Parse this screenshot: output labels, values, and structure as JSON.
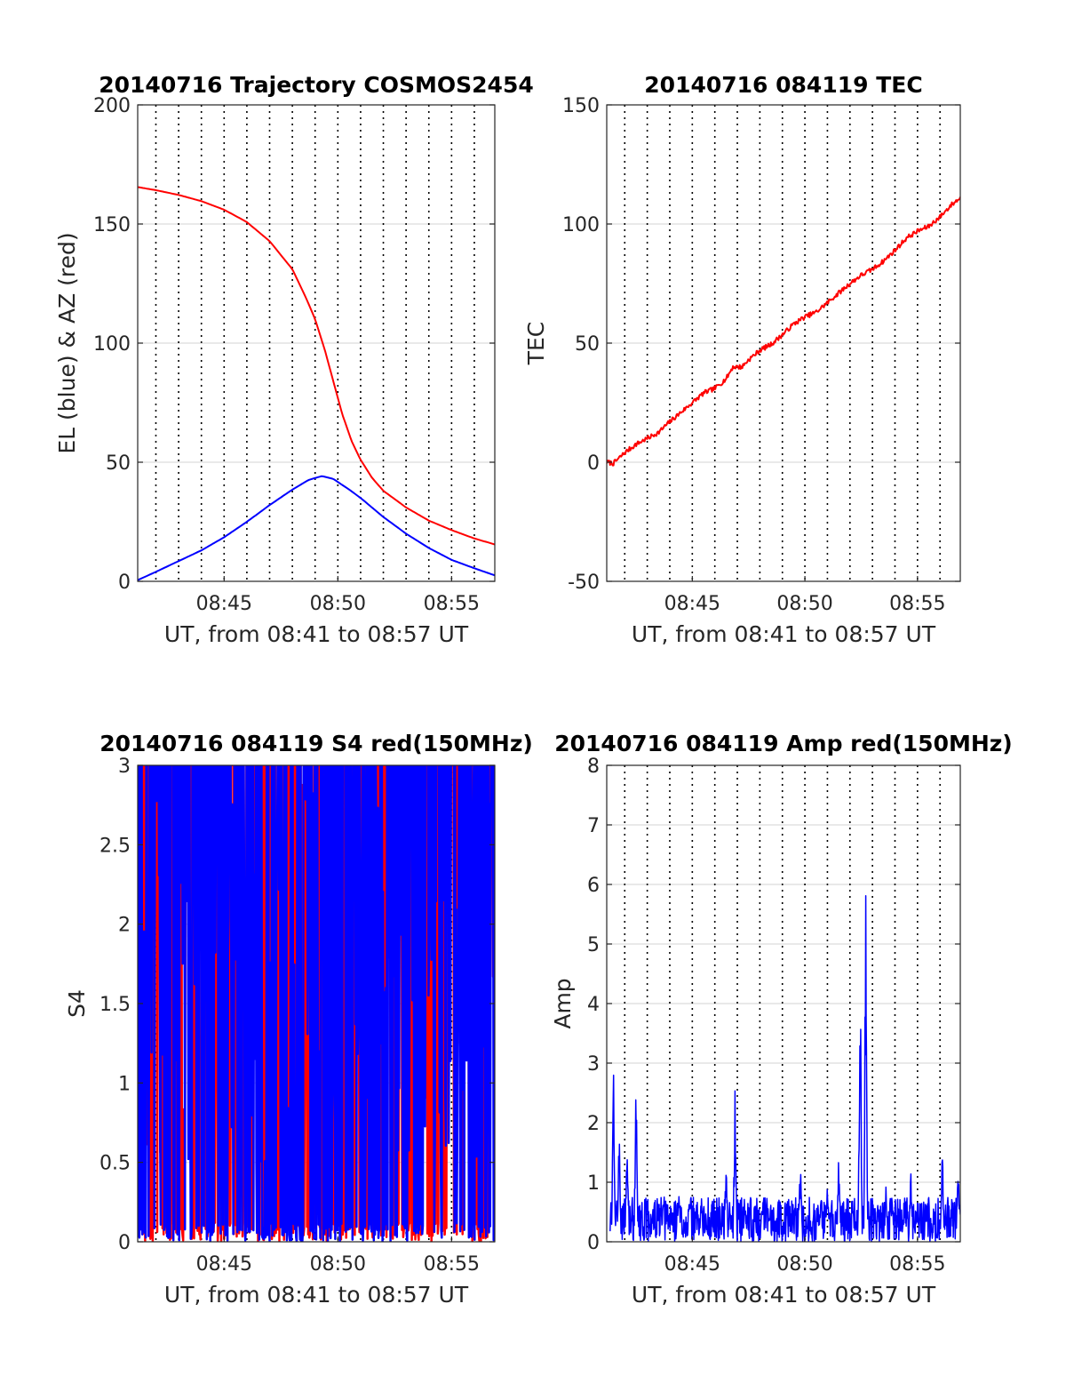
{
  "charts": [
    {
      "id": "trajectory",
      "type": "line",
      "title": "20140716 Trajectory COSMOS2454",
      "xlabel": "UT, from 08:41 to 08:57 UT",
      "ylabel": "EL (blue) & AZ (red)",
      "xlim_min": [
        41.2,
        56.9
      ],
      "ylim": [
        0,
        200
      ],
      "yticks": [
        "0",
        "50",
        "100",
        "150",
        "200"
      ],
      "xticks": [
        {
          "v": 45,
          "label": "08:45"
        },
        {
          "v": 50,
          "label": "08:50"
        },
        {
          "v": 55,
          "label": "08:55"
        }
      ],
      "minute_grid": [
        42,
        43,
        44,
        45,
        46,
        47,
        48,
        49,
        50,
        51,
        52,
        53,
        54,
        55,
        56
      ],
      "series": [
        {
          "color": "#ff0000",
          "width": 2,
          "points": [
            [
              41.2,
              165.5
            ],
            [
              42.0,
              164.2
            ],
            [
              43.0,
              162.2
            ],
            [
              44.0,
              159.6
            ],
            [
              45.0,
              156.0
            ],
            [
              46.0,
              150.8
            ],
            [
              47.0,
              142.8
            ],
            [
              48.0,
              131.0
            ],
            [
              48.6,
              119.0
            ],
            [
              49.0,
              110.0
            ],
            [
              49.4,
              98.0
            ],
            [
              49.8,
              84.0
            ],
            [
              50.2,
              70.0
            ],
            [
              50.6,
              59.0
            ],
            [
              51.0,
              51.0
            ],
            [
              51.5,
              43.5
            ],
            [
              52.0,
              38.0
            ],
            [
              53.0,
              31.0
            ],
            [
              54.0,
              25.5
            ],
            [
              55.0,
              21.5
            ],
            [
              56.0,
              18.0
            ],
            [
              56.9,
              15.5
            ]
          ]
        },
        {
          "color": "#0000ff",
          "width": 2,
          "points": [
            [
              41.2,
              0.5
            ],
            [
              42.0,
              4.0
            ],
            [
              43.0,
              8.5
            ],
            [
              44.0,
              13.0
            ],
            [
              45.0,
              18.5
            ],
            [
              46.0,
              25.0
            ],
            [
              47.0,
              32.0
            ],
            [
              48.0,
              38.5
            ],
            [
              48.7,
              42.5
            ],
            [
              49.3,
              44.2
            ],
            [
              49.8,
              43.0
            ],
            [
              50.5,
              38.5
            ],
            [
              51.0,
              35.0
            ],
            [
              52.0,
              27.0
            ],
            [
              53.0,
              20.0
            ],
            [
              54.0,
              14.0
            ],
            [
              55.0,
              9.0
            ],
            [
              56.0,
              5.5
            ],
            [
              56.9,
              2.5
            ]
          ]
        }
      ]
    },
    {
      "id": "tec",
      "type": "line",
      "title": "20140716 084119 TEC",
      "xlabel": "UT, from 08:41 to 08:57 UT",
      "ylabel": "TEC",
      "xlim_min": [
        41.2,
        56.9
      ],
      "ylim": [
        -50,
        150
      ],
      "yticks": [
        "-50",
        "0",
        "50",
        "100",
        "150"
      ],
      "xticks": [
        {
          "v": 45,
          "label": "08:45"
        },
        {
          "v": 50,
          "label": "08:50"
        },
        {
          "v": 55,
          "label": "08:55"
        }
      ],
      "minute_grid": [
        42,
        43,
        44,
        45,
        46,
        47,
        48,
        49,
        50,
        51,
        52,
        53,
        54,
        55,
        56
      ],
      "series": [
        {
          "color": "#ff0000",
          "width": 2,
          "jitter": 1.0,
          "points": [
            [
              41.2,
              0.0
            ],
            [
              41.5,
              -0.5
            ],
            [
              42.0,
              4.0
            ],
            [
              42.5,
              7.5
            ],
            [
              43.0,
              10.0
            ],
            [
              43.5,
              12.5
            ],
            [
              44.0,
              17.0
            ],
            [
              44.5,
              21.0
            ],
            [
              45.0,
              25.0
            ],
            [
              45.5,
              29.0
            ],
            [
              46.0,
              31.0
            ],
            [
              46.5,
              35.0
            ],
            [
              46.8,
              40.0
            ],
            [
              47.2,
              40.0
            ],
            [
              47.5,
              43.0
            ],
            [
              48.0,
              47.0
            ],
            [
              48.5,
              49.5
            ],
            [
              49.0,
              53.5
            ],
            [
              49.5,
              58.0
            ],
            [
              50.0,
              61.0
            ],
            [
              50.5,
              63.0
            ],
            [
              51.0,
              67.0
            ],
            [
              51.5,
              71.0
            ],
            [
              52.0,
              75.0
            ],
            [
              52.5,
              78.5
            ],
            [
              53.0,
              81.0
            ],
            [
              53.5,
              84.5
            ],
            [
              54.0,
              89.0
            ],
            [
              54.5,
              94.0
            ],
            [
              55.0,
              97.0
            ],
            [
              55.5,
              99.0
            ],
            [
              56.0,
              103.0
            ],
            [
              56.5,
              108.0
            ],
            [
              56.9,
              111.0
            ]
          ]
        }
      ]
    },
    {
      "id": "s4",
      "type": "line",
      "title": "20140716 084119 S4 red(150MHz)",
      "xlabel": "UT, from 08:41 to 08:57 UT",
      "ylabel": "S4",
      "xlim_min": [
        41.2,
        56.9
      ],
      "ylim": [
        0,
        3
      ],
      "yticks": [
        "0",
        "0.5",
        "1",
        "1.5",
        "2",
        "2.5",
        "3"
      ],
      "xticks": [
        {
          "v": 45,
          "label": "08:45"
        },
        {
          "v": 50,
          "label": "08:50"
        },
        {
          "v": 55,
          "label": "08:55"
        }
      ],
      "minute_grid": [
        42,
        43,
        44,
        45,
        46,
        47,
        48,
        49,
        50,
        51,
        52,
        53,
        54,
        55,
        56
      ],
      "series": [
        {
          "color": "#ff0000",
          "width": 2.5,
          "noise": "s4",
          "seed": 11
        },
        {
          "color": "#0000ff",
          "width": 2.5,
          "noise": "s4",
          "seed": 5
        }
      ]
    },
    {
      "id": "amp",
      "type": "line",
      "title": "20140716 084119 Amp red(150MHz)",
      "xlabel": "UT, from 08:41 to 08:57 UT",
      "ylabel": "Amp",
      "xlim_min": [
        41.2,
        56.9
      ],
      "ylim": [
        0,
        8
      ],
      "yticks": [
        "0",
        "1",
        "2",
        "3",
        "4",
        "5",
        "6",
        "7",
        "8"
      ],
      "xticks": [
        {
          "v": 45,
          "label": "08:45"
        },
        {
          "v": 50,
          "label": "08:50"
        },
        {
          "v": 55,
          "label": "08:55"
        }
      ],
      "minute_grid": [
        42,
        43,
        44,
        45,
        46,
        47,
        48,
        49,
        50,
        51,
        52,
        53,
        54,
        55,
        56
      ],
      "series": [
        {
          "color": "#0000ff",
          "width": 1.5,
          "noise": "amp",
          "seed": 3,
          "peaks": [
            [
              41.5,
              3.1
            ],
            [
              41.75,
              2.2
            ],
            [
              42.1,
              2.1
            ],
            [
              42.5,
              2.9
            ],
            [
              44.4,
              1.0
            ],
            [
              45.4,
              0.9
            ],
            [
              46.5,
              1.5
            ],
            [
              46.9,
              2.9
            ],
            [
              48.1,
              0.8
            ],
            [
              49.8,
              1.6
            ],
            [
              51.0,
              1.2
            ],
            [
              51.5,
              1.6
            ],
            [
              52.45,
              5.2
            ],
            [
              52.7,
              6.05
            ],
            [
              53.6,
              1.1
            ],
            [
              54.7,
              1.4
            ],
            [
              56.1,
              1.7
            ],
            [
              56.8,
              1.6
            ]
          ]
        }
      ]
    }
  ]
}
